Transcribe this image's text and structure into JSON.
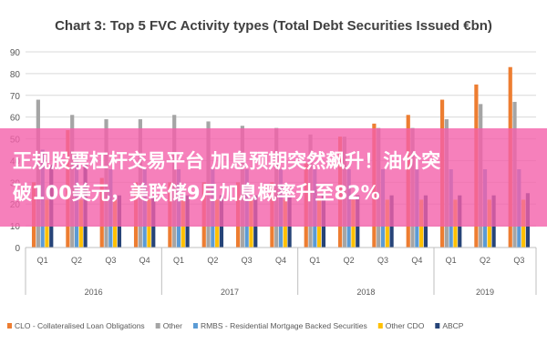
{
  "chart_data": {
    "type": "bar",
    "title": "Chart 3: Top 5 FVC Activity types (Total Debt Securities Issued €bn)",
    "categories": [
      "Q1",
      "Q2",
      "Q3",
      "Q4",
      "Q1",
      "Q2",
      "Q3",
      "Q4",
      "Q1",
      "Q2",
      "Q3",
      "Q4",
      "Q1",
      "Q2",
      "Q3"
    ],
    "years": [
      {
        "label": "2016"
      },
      {
        "label": "2017"
      },
      {
        "label": "2018"
      },
      {
        "label": "2019"
      }
    ],
    "ylim": [
      0,
      90
    ],
    "yticks": [
      0,
      10,
      20,
      30,
      40,
      50,
      60,
      70,
      80,
      90
    ],
    "grid": true,
    "legend_position": "bottom",
    "series": [
      {
        "name": "CLO - Collateralised Loan Obligations",
        "color": "#ED7D31",
        "values": [
          30,
          54,
          32,
          30,
          30,
          30,
          30,
          30,
          39,
          51,
          57,
          61,
          68,
          75,
          83
        ]
      },
      {
        "name": "Other",
        "color": "#A5A5A5",
        "values": [
          68,
          61,
          59,
          59,
          61,
          58,
          56,
          55,
          52,
          51,
          55,
          55,
          59,
          66,
          67
        ]
      },
      {
        "name": "RMBS - Residential Mortgage Backed Securities",
        "color": "#5B9BD5",
        "values": [
          45,
          44,
          36,
          36,
          36,
          36,
          36,
          36,
          36,
          36,
          36,
          36,
          36,
          36,
          36
        ]
      },
      {
        "name": "Other CDO",
        "color": "#FFC000",
        "values": [
          22,
          22,
          22,
          22,
          22,
          22,
          22,
          22,
          22,
          22,
          22,
          22,
          22,
          22,
          22
        ]
      },
      {
        "name": "ABCP",
        "color": "#264478",
        "values": [
          38,
          38,
          24,
          24,
          24,
          24,
          24,
          24,
          24,
          24,
          24,
          24,
          24,
          24,
          25
        ]
      }
    ]
  },
  "banner": {
    "line1": "正规股票杠杆交易平台 加息预期突然飙升！油价突",
    "line2": "破100美元，美联储9月加息概率升至82%"
  }
}
